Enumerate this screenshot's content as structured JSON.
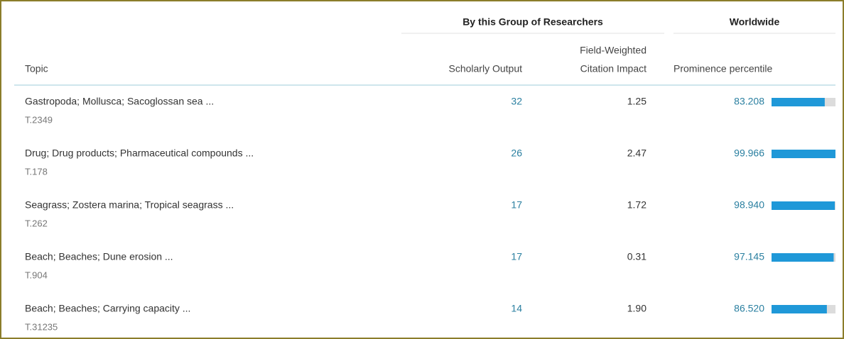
{
  "table": {
    "group_headers": [
      "By this Group of Researchers",
      "Worldwide"
    ],
    "columns": [
      "Topic",
      "Scholarly Output",
      "Field-Weighted",
      "Citation Impact",
      "Prominence percentile"
    ],
    "rows": [
      {
        "topic": "Gastropoda; Mollusca; Sacoglossan sea ...",
        "id": "T.2349",
        "output": 32,
        "fwci": "1.25",
        "percentile": "83.208"
      },
      {
        "topic": "Drug; Drug products; Pharmaceutical compounds ...",
        "id": "T.178",
        "output": 26,
        "fwci": "2.47",
        "percentile": "99.966"
      },
      {
        "topic": "Seagrass; Zostera marina; Tropical seagrass ...",
        "id": "T.262",
        "output": 17,
        "fwci": "1.72",
        "percentile": "98.940"
      },
      {
        "topic": "Beach; Beaches; Dune erosion ...",
        "id": "T.904",
        "output": 17,
        "fwci": "0.31",
        "percentile": "97.145"
      },
      {
        "topic": "Beach; Beaches; Carrying capacity ...",
        "id": "T.31235",
        "output": 14,
        "fwci": "1.90",
        "percentile": "86.520"
      }
    ]
  }
}
